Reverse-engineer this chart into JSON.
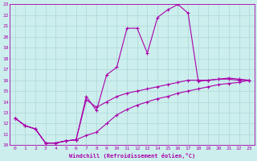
{
  "xlabel": "Windchill (Refroidissement éolien,°C)",
  "bg_color": "#cceeed",
  "grid_color": "#aad8d7",
  "line_color": "#aa00aa",
  "x_all": [
    0,
    1,
    2,
    3,
    4,
    5,
    6,
    7,
    8,
    9,
    10,
    11,
    12,
    13,
    14,
    15,
    16,
    17,
    18,
    19,
    20,
    21,
    22,
    23
  ],
  "y_series1": [
    12.5,
    11.8,
    11.5,
    10.2,
    10.2,
    10.4,
    10.5,
    14.5,
    13.2,
    16.5,
    17.2,
    20.8,
    20.8,
    18.5,
    21.8,
    22.5,
    23.0,
    22.2,
    15.9,
    16.0,
    16.1,
    16.2,
    16.1,
    16.0
  ],
  "y_series2": [
    12.5,
    11.8,
    11.5,
    10.2,
    10.2,
    10.4,
    10.5,
    14.2,
    13.5,
    14.0,
    14.5,
    14.8,
    15.0,
    15.2,
    15.4,
    15.6,
    15.8,
    16.0,
    16.0,
    16.0,
    16.1,
    16.1,
    16.0,
    16.0
  ],
  "y_series3": [
    12.5,
    11.8,
    11.5,
    10.2,
    10.2,
    10.4,
    10.5,
    10.9,
    11.2,
    12.0,
    12.8,
    13.3,
    13.7,
    14.0,
    14.3,
    14.5,
    14.8,
    15.0,
    15.2,
    15.4,
    15.6,
    15.7,
    15.8,
    16.0
  ],
  "xlim": [
    -0.5,
    23.5
  ],
  "ylim": [
    10,
    23
  ],
  "xticks": [
    0,
    1,
    2,
    3,
    4,
    5,
    6,
    7,
    8,
    9,
    10,
    11,
    12,
    13,
    14,
    15,
    16,
    17,
    18,
    19,
    20,
    21,
    22,
    23
  ],
  "yticks": [
    10,
    11,
    12,
    13,
    14,
    15,
    16,
    17,
    18,
    19,
    20,
    21,
    22,
    23
  ]
}
